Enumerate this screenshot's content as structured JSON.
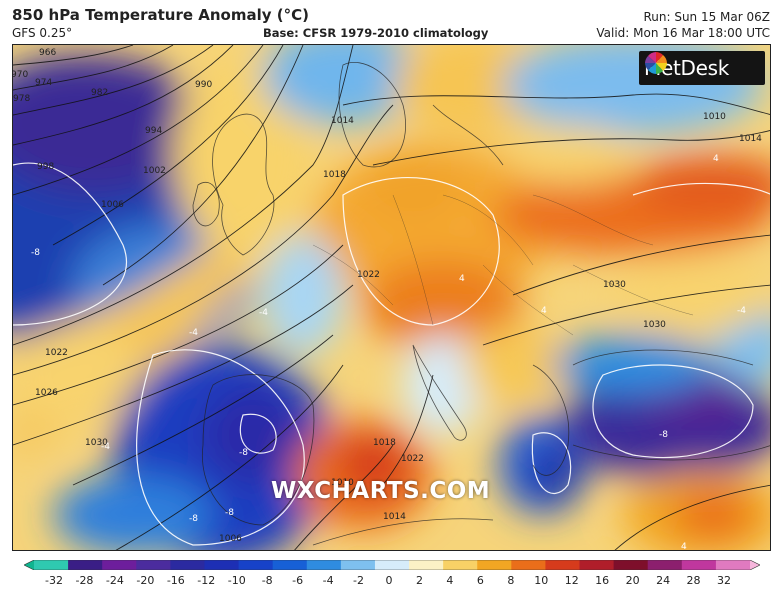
{
  "header": {
    "title": "850 hPa Temperature Anomaly (°C)",
    "model": "GFS 0.25°",
    "base": "Base: CFSR 1979-2010 climatology",
    "run": "Run: Sun 15 Mar 06Z",
    "valid": "Valid: Mon 16 Mar 18:00 UTC"
  },
  "logo": {
    "text": "MetDesk"
  },
  "watermark": "WXCHARTS.COM",
  "isobar_labels": [
    "966",
    "970",
    "974",
    "978",
    "982",
    "990",
    "994",
    "998",
    "1002",
    "1006",
    "1014",
    "1018",
    "1022",
    "1026",
    "1030",
    "1010",
    "1014",
    "1030",
    "1018",
    "1022",
    "1022",
    "1010",
    "1014",
    "1006",
    "1030"
  ],
  "anomaly_labels": [
    "-8",
    "-4",
    "-4",
    "-4",
    "-8",
    "-8",
    "-8",
    "4",
    "4",
    "4",
    "-8",
    "4",
    "-4"
  ],
  "colorbar": {
    "ticks": [
      "-32",
      "-28",
      "-24",
      "-20",
      "-16",
      "-12",
      "-10",
      "-8",
      "-6",
      "-4",
      "-2",
      "0",
      "2",
      "4",
      "6",
      "8",
      "10",
      "12",
      "16",
      "20",
      "24",
      "28",
      "32"
    ],
    "colors": [
      "#0fb58f",
      "#2fc9b0",
      "#3a1e86",
      "#6d1e9c",
      "#4b2c9e",
      "#2b2aa0",
      "#1d2fb4",
      "#1742c8",
      "#1760d6",
      "#2f8ce0",
      "#7ec0ef",
      "#d6ecfa",
      "#fbf1c6",
      "#f8d166",
      "#f2a623",
      "#ea6e1a",
      "#d63b1c",
      "#b01e2a",
      "#7e0f2b",
      "#8c1f6e",
      "#c0379e",
      "#e07ac0",
      "#f6b6dc"
    ]
  }
}
